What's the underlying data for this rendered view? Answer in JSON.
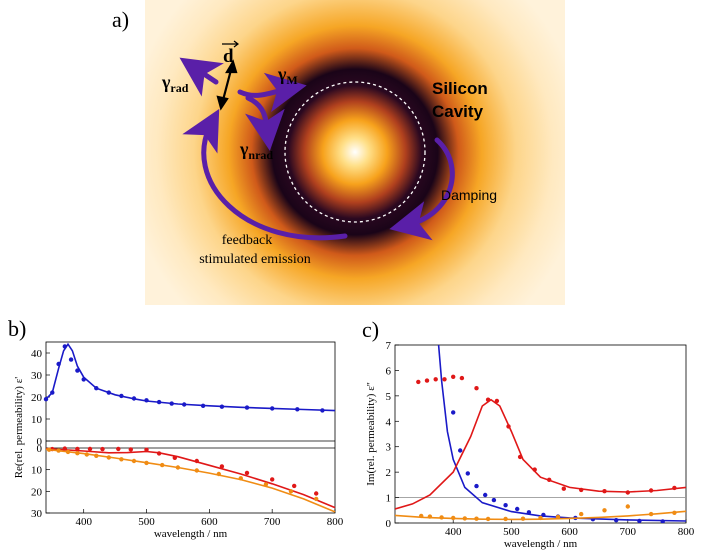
{
  "figure": {
    "panel_a": {
      "label": "a)",
      "dipole_label": "d",
      "gamma_rad": "rad",
      "gamma_m": "M",
      "gamma_nrad": "nrad",
      "gamma_symbol": "γ",
      "cavity_label_line1": "Silicon",
      "cavity_label_line2": "Cavity",
      "damping_label": "Damping",
      "feedback_line1": "feedback",
      "feedback_line2": "stimulated emission",
      "arrow_color": "#5a1fa8",
      "glow_outer": "#ffe7b0",
      "glow_mid": "#f3a21b"
    },
    "panel_b": {
      "label": "b)"
    },
    "panel_c": {
      "label": "c)"
    }
  },
  "chart_data": [
    {
      "type": "line",
      "title": "",
      "xlabel": "wavelength / nm",
      "ylabel": "Re(rel. permeability) ε'",
      "x_range": [
        340,
        800
      ],
      "x_ticks": [
        400,
        500,
        600,
        700,
        800
      ],
      "top_axis": {
        "y_range": [
          0,
          45
        ],
        "y_ticks": [
          0,
          10,
          20,
          30,
          40
        ]
      },
      "bottom_axis": {
        "y_range": [
          0,
          30
        ],
        "y_ticks": [
          0,
          10,
          20,
          30
        ],
        "reversed": true
      },
      "series": [
        {
          "name": "blue",
          "color": "#1a1ac8",
          "axis": "top",
          "line": {
            "x": [
              340,
              350,
              360,
              368,
              375,
              382,
              390,
              400,
              420,
              450,
              480,
              500,
              550,
              600,
              650,
              700,
              750,
              800
            ],
            "y": [
              19,
              22,
              33,
              41,
              44,
              41,
              34,
              29,
              24,
              21,
              19.2,
              18.2,
              16.8,
              16.0,
              15.3,
              14.8,
              14.3,
              13.8
            ]
          },
          "points": {
            "x": [
              340,
              350,
              360,
              370,
              380,
              390,
              400,
              420,
              440,
              460,
              480,
              500,
              520,
              540,
              560,
              590,
              620,
              660,
              700,
              740,
              780
            ],
            "y": [
              19,
              22,
              35,
              43,
              37,
              32,
              28,
              24,
              22,
              20.5,
              19.3,
              18.5,
              17.7,
              17.0,
              16.6,
              16.0,
              15.6,
              15.2,
              14.8,
              14.4,
              13.9
            ]
          }
        },
        {
          "name": "red",
          "color": "#e01818",
          "axis": "bottom",
          "line": {
            "x": [
              340,
              400,
              440,
              470,
              500,
              520,
              550,
              600,
              650,
              700,
              750,
              800
            ],
            "y": [
              0.3,
              1.4,
              2.2,
              2.1,
              1.6,
              2.2,
              4.0,
              8.0,
              12.0,
              16.5,
              21.5,
              27.5
            ]
          },
          "points": {
            "x": [
              350,
              370,
              390,
              410,
              430,
              455,
              475,
              500,
              520,
              545,
              580,
              620,
              660,
              700,
              735,
              770
            ],
            "y": [
              0.5,
              0.3,
              0.4,
              0.4,
              0.5,
              0.4,
              0.7,
              0.8,
              2.5,
              4.5,
              6.0,
              8.5,
              11.5,
              14.5,
              17.5,
              21.0
            ]
          }
        },
        {
          "name": "orange",
          "color": "#f08c14",
          "axis": "bottom",
          "line": {
            "x": [
              340,
              400,
              450,
              500,
              550,
              600,
              650,
              700,
              750,
              800
            ],
            "y": [
              0.6,
              2.6,
              4.6,
              6.8,
              9.0,
              11.6,
              14.6,
              18.5,
              23.5,
              29.5
            ]
          },
          "points": {
            "x": [
              345,
              360,
              375,
              390,
              405,
              420,
              440,
              460,
              480,
              500,
              525,
              550,
              580,
              615,
              650,
              690,
              730,
              770
            ],
            "y": [
              0.8,
              1.2,
              1.8,
              2.4,
              3.0,
              3.6,
              4.4,
              5.2,
              6.0,
              6.9,
              7.9,
              9.0,
              10.4,
              12.0,
              14.0,
              16.8,
              20.0,
              23.5
            ]
          }
        }
      ]
    },
    {
      "type": "line",
      "title": "",
      "xlabel": "wavelength / nm",
      "ylabel": "Im(rel. permeability) ε''",
      "x_range": [
        300,
        800
      ],
      "y_range": [
        0,
        7
      ],
      "x_ticks": [
        400,
        500,
        600,
        700,
        800
      ],
      "y_ticks": [
        0,
        1,
        2,
        3,
        4,
        5,
        6,
        7
      ],
      "reference_line": 1,
      "series": [
        {
          "name": "blue",
          "color": "#1a1ac8",
          "line": {
            "x": [
              375,
              380,
              390,
              400,
              420,
              450,
              500,
              550,
              600,
              700,
              800
            ],
            "y": [
              7,
              5.6,
              3.6,
              2.5,
              1.4,
              0.8,
              0.45,
              0.28,
              0.2,
              0.12,
              0.08
            ]
          },
          "points": {
            "x": [
              400,
              412,
              425,
              440,
              455,
              470,
              490,
              510,
              530,
              555,
              580,
              610,
              640,
              680,
              720,
              760
            ],
            "y": [
              4.35,
              2.85,
              1.95,
              1.45,
              1.1,
              0.9,
              0.7,
              0.55,
              0.42,
              0.32,
              0.25,
              0.2,
              0.15,
              0.11,
              0.08,
              0.06
            ]
          }
        },
        {
          "name": "red",
          "color": "#e01818",
          "line": {
            "x": [
              300,
              330,
              360,
              400,
              430,
              450,
              465,
              480,
              500,
              520,
              550,
              600,
              650,
              700,
              750,
              800
            ],
            "y": [
              0.55,
              0.75,
              1.1,
              2.0,
              3.4,
              4.6,
              4.85,
              4.6,
              3.6,
              2.5,
              1.8,
              1.4,
              1.25,
              1.22,
              1.28,
              1.4
            ]
          },
          "points": {
            "x": [
              340,
              355,
              370,
              385,
              400,
              415,
              440,
              460,
              475,
              495,
              515,
              540,
              565,
              590,
              620,
              660,
              700,
              740,
              780
            ],
            "y": [
              5.55,
              5.6,
              5.65,
              5.65,
              5.75,
              5.7,
              5.3,
              4.85,
              4.8,
              3.8,
              2.6,
              2.1,
              1.7,
              1.35,
              1.3,
              1.25,
              1.2,
              1.28,
              1.38
            ]
          }
        },
        {
          "name": "orange",
          "color": "#f08c14",
          "line": {
            "x": [
              300,
              350,
              400,
              450,
              500,
              550,
              600,
              650,
              700,
              750,
              800
            ],
            "y": [
              0.3,
              0.22,
              0.18,
              0.15,
              0.14,
              0.15,
              0.18,
              0.22,
              0.28,
              0.36,
              0.46
            ]
          },
          "points": {
            "x": [
              345,
              360,
              380,
              400,
              420,
              440,
              460,
              490,
              520,
              550,
              580,
              620,
              660,
              700,
              740,
              780
            ],
            "y": [
              0.28,
              0.25,
              0.22,
              0.2,
              0.18,
              0.17,
              0.16,
              0.16,
              0.17,
              0.2,
              0.24,
              0.35,
              0.5,
              0.65,
              0.35,
              0.4
            ]
          }
        }
      ]
    }
  ]
}
